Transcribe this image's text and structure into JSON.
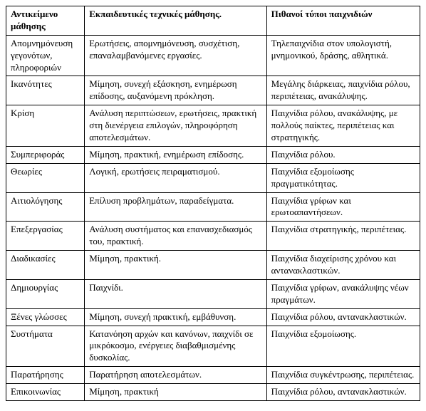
{
  "table": {
    "headers": [
      "Αντικείμενο μάθησης",
      "Εκπαιδευτικές τεχνικές μάθησης.",
      "Πιθανοί τύποι παιχνιδιών"
    ],
    "rows": [
      [
        "Απομνημόνευση γεγονότων, πληροφοριών",
        "Ερωτήσεις, απομνημόνευση, συσχέτιση, επαναλαμβανόμενες εργασίες.",
        "Τηλεπαιχνίδια στον υπολογιστή, μνημονικού, δράσης, αθλητικά."
      ],
      [
        "Ικανότητες",
        "Μίμηση, συνεχή εξάσκηση, ενημέρωση επίδοσης, αυξανόμενη πρόκληση.",
        "Μεγάλης διάρκειας, παιχνίδια ρόλου, περιπέτειας, ανακάλυψης."
      ],
      [
        "Κρίση",
        "Ανάλυση περιπτώσεων, ερωτήσεις, πρακτική στη διενέργεια επιλογών, πληροφόρηση αποτελεσμάτων.",
        "Παιχνίδια ρόλου, ανακάλυψης, με πολλούς παίκτες, περιπέτειας και στρατηγικής."
      ],
      [
        "Συμπεριφοράς",
        "Μίμηση, πρακτική, ενημέρωση επίδοσης.",
        "Παιχνίδια ρόλου."
      ],
      [
        "Θεωρίες",
        "Λογική, ερωτήσεις πειραματισμού.",
        "Παιχνίδια εξομοίωσης πραγματικότητας."
      ],
      [
        "Αιτιολόγησης",
        "Επίλυση προβλημάτων, παραδείγματα.",
        "Παιχνίδια γρίφων και ερωτοαπαντήσεων."
      ],
      [
        "Επεξεργασίας",
        "Ανάλυση συστήματος και επανασχεδιασμός του, πρακτική.",
        "Παιχνίδια στρατηγικής, περιπέτειας."
      ],
      [
        "Διαδικασίες",
        "Μίμηση, πρακτική.",
        "Παιχνίδια διαχείρισης χρόνου και αντανακλαστικών."
      ],
      [
        "Δημιουργίας",
        "Παιχνίδι.",
        "Παιχνίδια γρίφων, ανακάλυψης νέων πραγμάτων."
      ],
      [
        "Ξένες γλώσσες",
        "Μίμηση, συνεχή πρακτική, εμβάθυνση.",
        "Παιχνίδια ρόλου, αντανακλαστικών."
      ],
      [
        "Συστήματα",
        "Κατανόηση αρχών και κανόνων, παιχνίδι σε μικρόκοσμο, ενέργειες διαβαθμισμένης δυσκολίας.",
        "Παιχνίδια εξομοίωσης."
      ],
      [
        "Παρατήρησης",
        "Παρατήρηση αποτελεσμάτων.",
        "Παιχνίδια συγκέντρωσης, περιπέτειας."
      ],
      [
        "Επικοινωνίας",
        "Μίμηση, πρακτική",
        "Παιχνίδια ρόλου, αντανακλαστικών."
      ]
    ]
  }
}
